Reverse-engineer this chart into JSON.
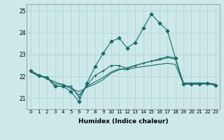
{
  "xlabel": "Humidex (Indice chaleur)",
  "xlim": [
    -0.5,
    23.5
  ],
  "ylim": [
    20.5,
    25.3
  ],
  "yticks": [
    21,
    22,
    23,
    24,
    25
  ],
  "xticks": [
    0,
    1,
    2,
    3,
    4,
    5,
    6,
    7,
    8,
    9,
    10,
    11,
    12,
    13,
    14,
    15,
    16,
    17,
    18,
    19,
    20,
    21,
    22,
    23
  ],
  "bg_color": "#cce8e8",
  "grid_color": "#b0d0d0",
  "line_color": "#1a6b6b",
  "lines": [
    {
      "x": [
        0,
        1,
        2,
        3,
        4,
        5,
        6,
        7,
        8,
        9,
        10,
        11,
        12,
        13,
        14,
        15,
        16,
        17,
        18,
        19,
        20,
        21,
        22,
        23
      ],
      "y": [
        22.25,
        22.05,
        21.95,
        21.55,
        21.55,
        21.55,
        21.05,
        21.6,
        22.05,
        22.25,
        22.5,
        22.5,
        22.35,
        22.5,
        22.6,
        22.7,
        22.8,
        22.9,
        22.85,
        21.65,
        21.65,
        21.65,
        21.7,
        21.6
      ],
      "marker": "+"
    },
    {
      "x": [
        0,
        1,
        2,
        3,
        4,
        5,
        6,
        7,
        8,
        9,
        10,
        11,
        12,
        13,
        14,
        15,
        16,
        17,
        18,
        19,
        20,
        21,
        22,
        23
      ],
      "y": [
        22.25,
        22.05,
        21.95,
        21.55,
        21.55,
        21.3,
        20.85,
        21.7,
        22.45,
        23.05,
        23.6,
        23.75,
        23.3,
        23.55,
        24.2,
        24.85,
        24.45,
        24.1,
        22.85,
        21.65,
        21.65,
        21.65,
        21.7,
        21.6
      ],
      "marker": "D"
    },
    {
      "x": [
        0,
        1,
        2,
        3,
        4,
        5,
        6,
        7,
        8,
        9,
        10,
        11,
        12,
        13,
        14,
        15,
        16,
        17,
        18,
        19,
        20,
        21,
        22,
        23
      ],
      "y": [
        22.2,
        22.05,
        21.9,
        21.75,
        21.6,
        21.45,
        21.3,
        21.5,
        21.65,
        21.85,
        22.15,
        22.3,
        22.4,
        22.5,
        22.6,
        22.7,
        22.75,
        22.85,
        22.8,
        21.7,
        21.7,
        21.7,
        21.7,
        21.65
      ],
      "marker": null
    },
    {
      "x": [
        0,
        1,
        2,
        3,
        4,
        5,
        6,
        7,
        8,
        9,
        10,
        11,
        12,
        13,
        14,
        15,
        16,
        17,
        18,
        19,
        20,
        21,
        22,
        23
      ],
      "y": [
        22.2,
        22.0,
        21.95,
        21.65,
        21.65,
        21.45,
        21.15,
        21.55,
        21.75,
        21.95,
        22.2,
        22.35,
        22.3,
        22.4,
        22.45,
        22.5,
        22.55,
        22.6,
        22.55,
        21.65,
        21.65,
        21.65,
        21.65,
        21.6
      ],
      "marker": null
    }
  ]
}
